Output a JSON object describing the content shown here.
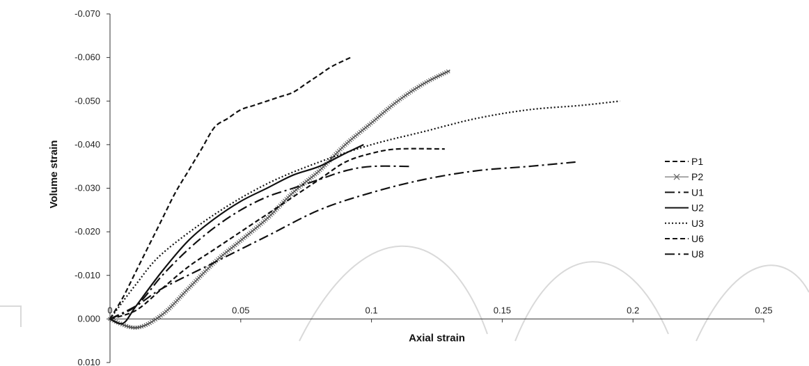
{
  "chart_data": {
    "type": "line",
    "xlabel": "Axial strain",
    "ylabel": "Volume strain",
    "xlim": [
      0,
      0.25
    ],
    "ylim": [
      -0.07,
      0.01
    ],
    "y_inverted": true,
    "x_ticks": [
      {
        "value": 0,
        "label": "0"
      },
      {
        "value": 0.05,
        "label": "0.05"
      },
      {
        "value": 0.1,
        "label": "0.1"
      },
      {
        "value": 0.15,
        "label": "0.15"
      },
      {
        "value": 0.2,
        "label": "0.2"
      },
      {
        "value": 0.25,
        "label": "0.25"
      }
    ],
    "y_ticks": [
      {
        "value": -0.07,
        "label": "-0.070"
      },
      {
        "value": -0.06,
        "label": "-0.060"
      },
      {
        "value": -0.05,
        "label": "-0.050"
      },
      {
        "value": -0.04,
        "label": "-0.040"
      },
      {
        "value": -0.03,
        "label": "-0.030"
      },
      {
        "value": -0.02,
        "label": "-0.020"
      },
      {
        "value": -0.01,
        "label": "-0.010"
      },
      {
        "value": 0.0,
        "label": "0.000"
      },
      {
        "value": 0.01,
        "label": "0.010"
      }
    ],
    "x_axis_at_y": 0.0,
    "grid": false,
    "legend_position": "right",
    "series": [
      {
        "name": "P1",
        "style": "dash",
        "color": "#111111",
        "x": [
          0,
          0.005,
          0.01,
          0.015,
          0.02,
          0.025,
          0.03,
          0.035,
          0.04,
          0.045,
          0.05,
          0.055,
          0.06,
          0.065,
          0.07,
          0.075,
          0.08,
          0.085,
          0.092
        ],
        "y": [
          0.0,
          -0.005,
          -0.011,
          -0.017,
          -0.023,
          -0.029,
          -0.034,
          -0.039,
          -0.044,
          -0.046,
          -0.048,
          -0.049,
          -0.05,
          -0.051,
          -0.052,
          -0.054,
          -0.056,
          -0.058,
          -0.06
        ]
      },
      {
        "name": "P2",
        "style": "marker-x",
        "color": "#444444",
        "x": [
          0,
          0.01,
          0.02,
          0.03,
          0.04,
          0.05,
          0.06,
          0.07,
          0.08,
          0.09,
          0.1,
          0.11,
          0.12,
          0.13
        ],
        "y": [
          0.0,
          0.002,
          -0.001,
          -0.007,
          -0.013,
          -0.018,
          -0.023,
          -0.029,
          -0.034,
          -0.04,
          -0.045,
          -0.05,
          -0.054,
          -0.057
        ]
      },
      {
        "name": "U1",
        "style": "dashdot-long",
        "color": "#111111",
        "x": [
          0,
          0.01,
          0.02,
          0.03,
          0.04,
          0.05,
          0.06,
          0.07,
          0.08,
          0.09,
          0.1,
          0.115
        ],
        "y": [
          0.0,
          -0.003,
          -0.01,
          -0.016,
          -0.021,
          -0.025,
          -0.028,
          -0.03,
          -0.032,
          -0.034,
          -0.035,
          -0.035
        ]
      },
      {
        "name": "U2",
        "style": "solid",
        "color": "#111111",
        "x": [
          0,
          0.005,
          0.01,
          0.02,
          0.03,
          0.04,
          0.05,
          0.06,
          0.07,
          0.08,
          0.09,
          0.097
        ],
        "y": [
          0.0,
          0.001,
          -0.003,
          -0.011,
          -0.018,
          -0.023,
          -0.027,
          -0.03,
          -0.033,
          -0.035,
          -0.038,
          -0.04
        ]
      },
      {
        "name": "U3",
        "style": "dot",
        "color": "#111111",
        "x": [
          0,
          0.01,
          0.02,
          0.04,
          0.06,
          0.08,
          0.1,
          0.12,
          0.14,
          0.16,
          0.18,
          0.195
        ],
        "y": [
          0.0,
          -0.008,
          -0.015,
          -0.024,
          -0.031,
          -0.036,
          -0.04,
          -0.043,
          -0.046,
          -0.048,
          -0.049,
          -0.05
        ]
      },
      {
        "name": "U6",
        "style": "dash",
        "color": "#111111",
        "x": [
          0,
          0.01,
          0.02,
          0.03,
          0.04,
          0.05,
          0.06,
          0.07,
          0.08,
          0.09,
          0.1,
          0.11,
          0.128
        ],
        "y": [
          0.0,
          -0.002,
          -0.007,
          -0.012,
          -0.016,
          -0.02,
          -0.024,
          -0.028,
          -0.032,
          -0.036,
          -0.038,
          -0.039,
          -0.039
        ]
      },
      {
        "name": "U8",
        "style": "dashdot-long",
        "color": "#111111",
        "x": [
          0,
          0.01,
          0.02,
          0.04,
          0.06,
          0.08,
          0.1,
          0.12,
          0.14,
          0.16,
          0.178
        ],
        "y": [
          0.0,
          -0.003,
          -0.007,
          -0.013,
          -0.019,
          -0.025,
          -0.029,
          -0.032,
          -0.034,
          -0.035,
          -0.036
        ]
      }
    ]
  }
}
